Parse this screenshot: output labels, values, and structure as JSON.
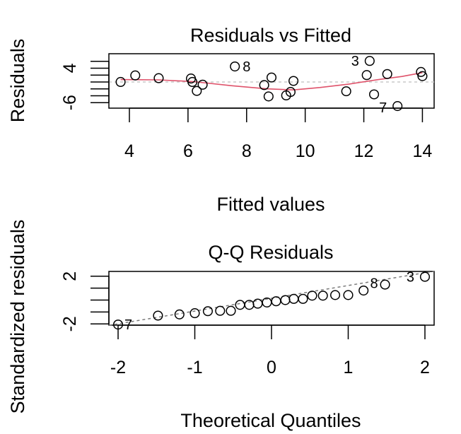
{
  "chart_data": [
    {
      "type": "scatter",
      "title": "Residuals vs Fitted",
      "xlabel": "Fitted values",
      "ylabel": "Residuals",
      "xlim": [
        3.3,
        14.4
      ],
      "ylim": [
        -7.6,
        8.2
      ],
      "xticks": [
        4,
        6,
        8,
        10,
        12,
        14
      ],
      "yticks": [
        -6,
        -4,
        -2,
        0,
        2,
        4,
        6
      ],
      "ytick_labels": [
        "-6",
        "",
        "",
        "",
        "",
        "4",
        ""
      ],
      "reference_line_y": 0,
      "points": [
        {
          "x": 3.7,
          "y": 0.0
        },
        {
          "x": 4.2,
          "y": 1.9
        },
        {
          "x": 5.0,
          "y": 1.1
        },
        {
          "x": 6.1,
          "y": 1.0
        },
        {
          "x": 6.15,
          "y": 0.0
        },
        {
          "x": 6.3,
          "y": -2.6
        },
        {
          "x": 6.5,
          "y": -0.8
        },
        {
          "x": 7.6,
          "y": 4.5,
          "label": "8"
        },
        {
          "x": 8.6,
          "y": -0.9
        },
        {
          "x": 8.75,
          "y": -4.2
        },
        {
          "x": 8.85,
          "y": 1.3
        },
        {
          "x": 9.35,
          "y": -3.9
        },
        {
          "x": 9.5,
          "y": -2.9
        },
        {
          "x": 9.6,
          "y": 0.3
        },
        {
          "x": 11.4,
          "y": -2.7
        },
        {
          "x": 12.1,
          "y": 2.0
        },
        {
          "x": 12.2,
          "y": 6.1,
          "label": "3"
        },
        {
          "x": 12.35,
          "y": -3.6
        },
        {
          "x": 12.8,
          "y": 2.3
        },
        {
          "x": 13.15,
          "y": -7.0,
          "label": "7"
        },
        {
          "x": 13.95,
          "y": 2.9
        },
        {
          "x": 14.0,
          "y": 1.7
        }
      ],
      "smoother": {
        "color": "#DF536B",
        "x": [
          3.7,
          5.0,
          6.2,
          7.5,
          8.7,
          9.6,
          10.5,
          11.5,
          12.5,
          13.3,
          14.0
        ],
        "y": [
          0.7,
          0.6,
          0.1,
          -1.1,
          -2.0,
          -2.3,
          -1.6,
          -0.6,
          0.7,
          1.6,
          2.7
        ]
      }
    },
    {
      "type": "scatter",
      "title": "Q-Q Residuals",
      "xlabel": "Theoretical Quantiles",
      "ylabel": "Standardized residuals",
      "xlim": [
        -2.12,
        2.12
      ],
      "ylim": [
        -2.1,
        2.4
      ],
      "xticks": [
        -2,
        -1,
        0,
        1,
        2
      ],
      "yticks": [
        -2,
        -1,
        0,
        1,
        2
      ],
      "ytick_labels": [
        "-2",
        "",
        "",
        "",
        "2"
      ],
      "reference_line": {
        "x": [
          -2.12,
          2.12
        ],
        "y": [
          -2.12,
          2.42
        ]
      },
      "points": [
        {
          "x": -2.0,
          "y": -2.05,
          "label": "7"
        },
        {
          "x": -1.48,
          "y": -1.3
        },
        {
          "x": -1.2,
          "y": -1.2
        },
        {
          "x": -1.0,
          "y": -1.1
        },
        {
          "x": -0.83,
          "y": -0.93
        },
        {
          "x": -0.67,
          "y": -0.9
        },
        {
          "x": -0.53,
          "y": -0.9
        },
        {
          "x": -0.41,
          "y": -0.4
        },
        {
          "x": -0.29,
          "y": -0.4
        },
        {
          "x": -0.18,
          "y": -0.3
        },
        {
          "x": -0.06,
          "y": -0.2
        },
        {
          "x": 0.06,
          "y": -0.1
        },
        {
          "x": 0.18,
          "y": 0.0
        },
        {
          "x": 0.29,
          "y": 0.1
        },
        {
          "x": 0.41,
          "y": 0.1
        },
        {
          "x": 0.53,
          "y": 0.37
        },
        {
          "x": 0.67,
          "y": 0.37
        },
        {
          "x": 0.83,
          "y": 0.42
        },
        {
          "x": 1.0,
          "y": 0.42
        },
        {
          "x": 1.2,
          "y": 0.8
        },
        {
          "x": 1.48,
          "y": 1.3,
          "label": "8"
        },
        {
          "x": 2.0,
          "y": 1.95,
          "label": "3"
        }
      ]
    }
  ]
}
